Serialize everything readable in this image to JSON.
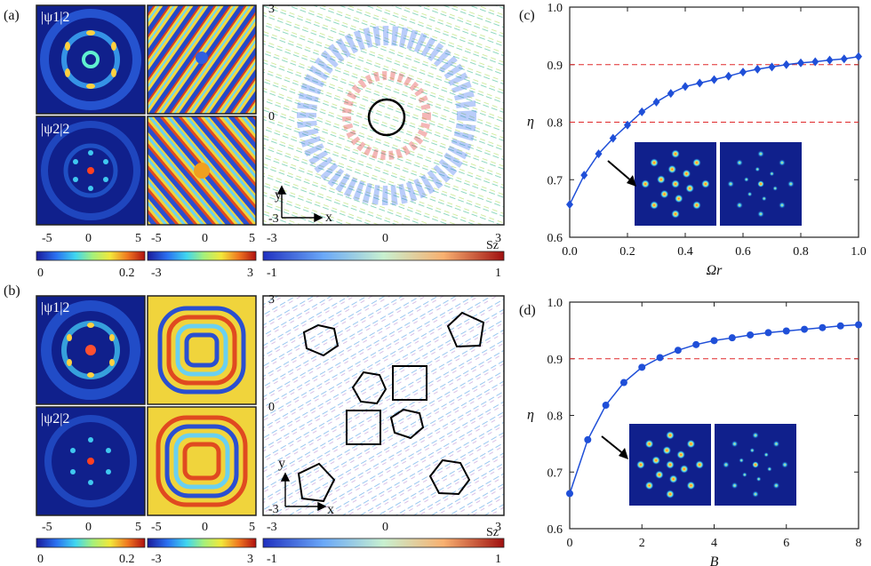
{
  "panels": {
    "a": {
      "label": "(a)",
      "density1_label": "|ψ1|2",
      "density2_label": "|ψ2|2",
      "density_ticks": [
        "-5",
        "0",
        "5"
      ],
      "phase_ticks": [
        "-5",
        "0",
        "5"
      ],
      "spin_left_ticks": [
        "3",
        "0",
        "-3"
      ],
      "spin_bottom_ticks": [
        "-3",
        "0",
        "3"
      ],
      "axis_x": "x",
      "axis_y": "y"
    },
    "b": {
      "label": "(b)",
      "density1_label": "|ψ1|2",
      "density2_label": "|ψ2|2",
      "density_ticks": [
        "-5",
        "0",
        "5"
      ],
      "phase_ticks": [
        "-5",
        "0",
        "5"
      ],
      "spin_left_ticks": [
        "3",
        "0",
        "-3"
      ],
      "spin_bottom_ticks": [
        "-3",
        "0",
        "3"
      ],
      "axis_x": "x",
      "axis_y": "y"
    }
  },
  "colorbars": {
    "density": {
      "min": "0",
      "max": "0.2"
    },
    "phase": {
      "min": "-3",
      "max": "3"
    },
    "spin": {
      "min": "-1",
      "max": "1",
      "label": "Sz"
    }
  },
  "chart_data": [
    {
      "label": "(c)",
      "type": "line",
      "xlabel": "Ωr",
      "ylabel": "η",
      "xlim": [
        0,
        1.0
      ],
      "ylim": [
        0.6,
        1.0
      ],
      "xticks": [
        "0.0",
        "0.2",
        "0.4",
        "0.6",
        "0.8",
        "1.0"
      ],
      "yticks": [
        "0.6",
        "0.7",
        "0.8",
        "0.9",
        "1.0"
      ],
      "reference_lines": [
        0.8,
        0.9
      ],
      "x": [
        0.0,
        0.05,
        0.1,
        0.15,
        0.2,
        0.25,
        0.3,
        0.35,
        0.4,
        0.45,
        0.5,
        0.55,
        0.6,
        0.65,
        0.7,
        0.75,
        0.8,
        0.85,
        0.9,
        0.95,
        1.0
      ],
      "y": [
        0.657,
        0.708,
        0.745,
        0.772,
        0.795,
        0.818,
        0.835,
        0.85,
        0.862,
        0.868,
        0.874,
        0.88,
        0.887,
        0.892,
        0.896,
        0.9,
        0.903,
        0.905,
        0.908,
        0.91,
        0.914
      ]
    },
    {
      "label": "(d)",
      "type": "line",
      "xlabel": "B",
      "ylabel": "η",
      "xlim": [
        0,
        8
      ],
      "ylim": [
        0.6,
        1.0
      ],
      "xticks": [
        "0",
        "2",
        "4",
        "6",
        "8"
      ],
      "yticks": [
        "0.6",
        "0.7",
        "0.8",
        "0.9",
        "1.0"
      ],
      "reference_lines": [
        0.9
      ],
      "x": [
        0,
        0.5,
        1.0,
        1.5,
        2.0,
        2.5,
        3.0,
        3.5,
        4.0,
        4.5,
        5.0,
        5.5,
        6.0,
        6.5,
        7.0,
        7.5,
        8.0
      ],
      "y": [
        0.662,
        0.757,
        0.818,
        0.858,
        0.885,
        0.902,
        0.915,
        0.925,
        0.932,
        0.937,
        0.942,
        0.946,
        0.949,
        0.952,
        0.955,
        0.958,
        0.96
      ]
    }
  ],
  "colors": {
    "line": "#1f4fd8",
    "reference": "#e0282a",
    "image_bg": "#10208c"
  }
}
